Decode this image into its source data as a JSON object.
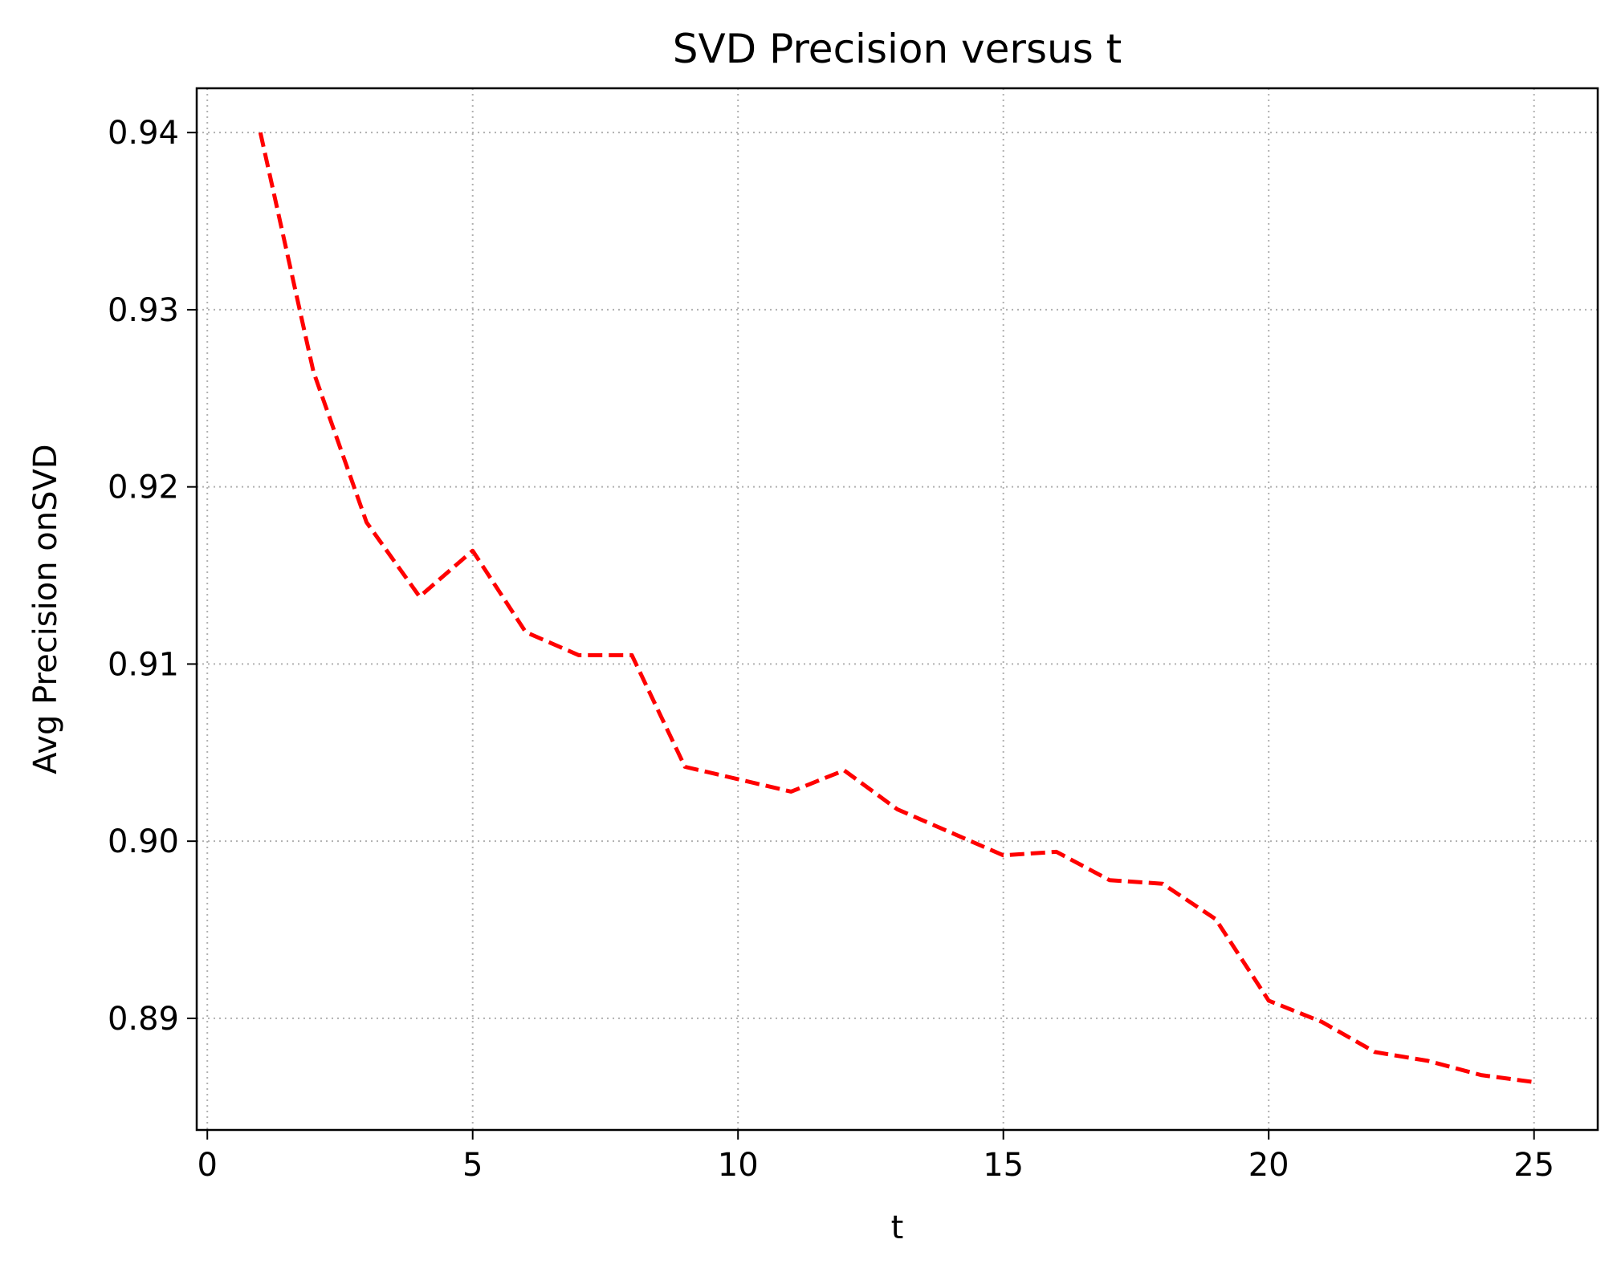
{
  "chart_data": {
    "type": "line",
    "title": "SVD Precision versus t",
    "xlabel": "t",
    "ylabel": "Avg Precision onSVD",
    "xlim": [
      -0.2,
      26.2
    ],
    "ylim": [
      0.8837,
      0.9425
    ],
    "xticks": [
      0,
      5,
      10,
      15,
      20,
      25
    ],
    "xtick_labels": [
      "0",
      "5",
      "10",
      "15",
      "20",
      "25"
    ],
    "yticks": [
      0.89,
      0.9,
      0.91,
      0.92,
      0.93,
      0.94
    ],
    "ytick_labels": [
      "0.89",
      "0.90",
      "0.91",
      "0.92",
      "0.93",
      "0.94"
    ],
    "grid": true,
    "series": [
      {
        "line_style": "dashed",
        "color": "#ff0000",
        "x": [
          1,
          2,
          3,
          4,
          5,
          6,
          7,
          8,
          9,
          10,
          11,
          12,
          13,
          14,
          15,
          16,
          17,
          18,
          19,
          20,
          21,
          22,
          23,
          24,
          25
        ],
        "y": [
          0.94,
          0.9265,
          0.918,
          0.9138,
          0.9164,
          0.9118,
          0.9105,
          0.9105,
          0.9042,
          0.9035,
          0.9028,
          0.904,
          0.9018,
          0.9005,
          0.8992,
          0.8994,
          0.8978,
          0.8976,
          0.8956,
          0.891,
          0.8898,
          0.8881,
          0.8876,
          0.8868,
          0.8864
        ]
      }
    ]
  }
}
